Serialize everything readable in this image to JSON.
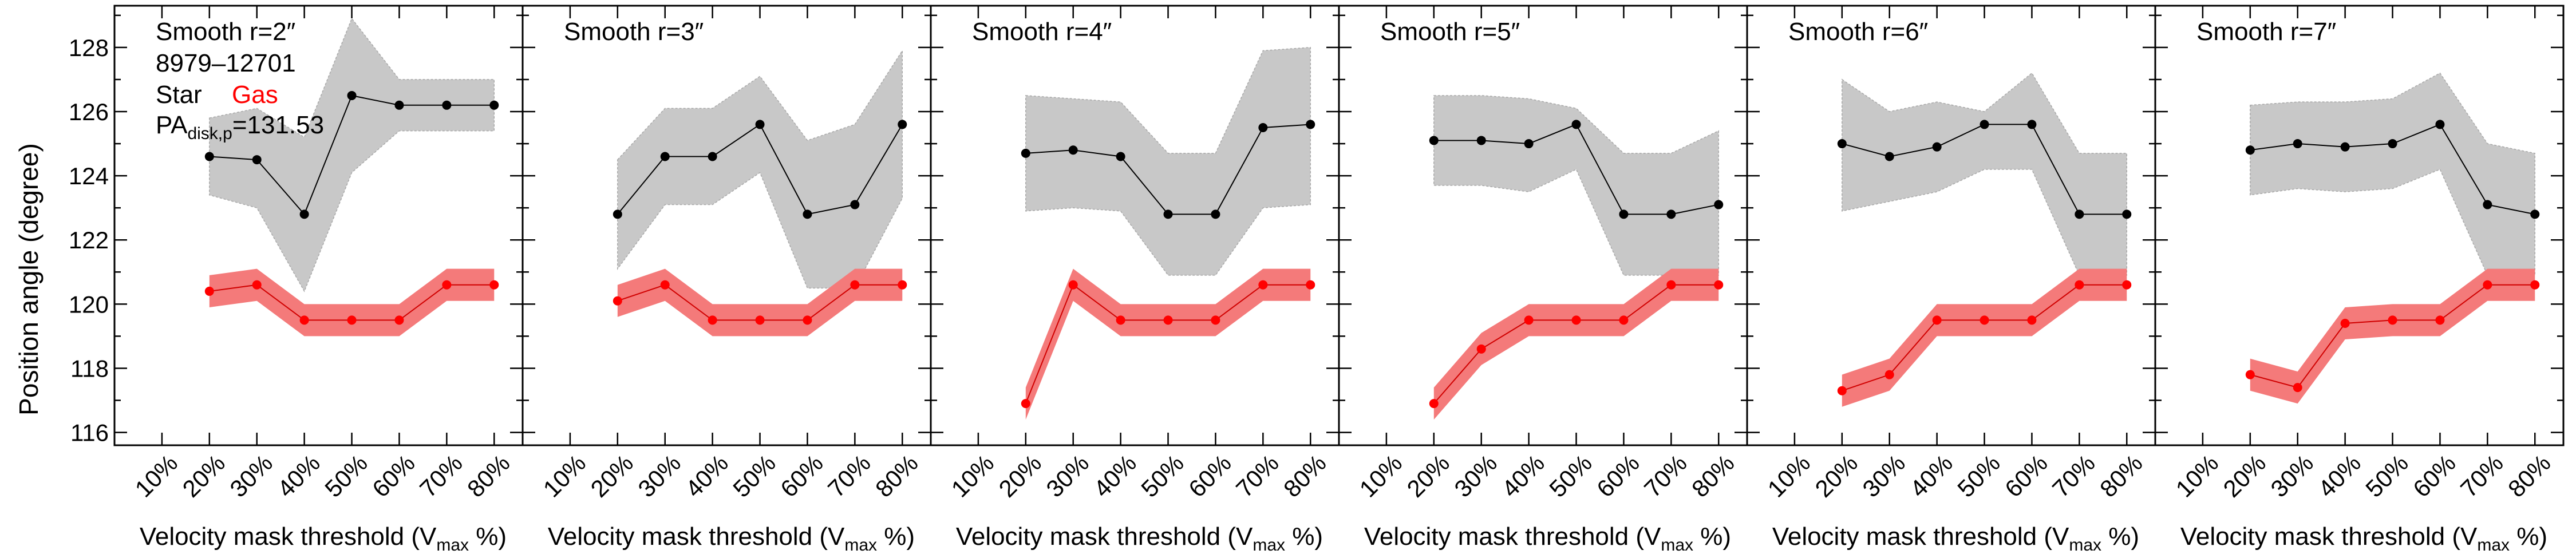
{
  "figure": {
    "ylabel": "Position angle (degree)",
    "xlabel_main": "Velocity mask threshold (V",
    "xlabel_sub": "max",
    "xlabel_tail": " %)",
    "ylim": [
      115.6,
      129.3
    ],
    "y_ticks": [
      "116",
      "118",
      "120",
      "122",
      "124",
      "126",
      "128"
    ],
    "x_ticks": [
      "10%",
      "20%",
      "30%",
      "40%",
      "50%",
      "60%",
      "70%",
      "80%"
    ],
    "x_tick_values": [
      10,
      20,
      30,
      40,
      50,
      60,
      70,
      80
    ],
    "xlim": [
      0,
      86
    ],
    "annotation": {
      "plate_ifu": "8979–12701",
      "star_label": "Star",
      "gas_label": "Gas",
      "pa_main": "PA",
      "pa_sub": "disk,p",
      "pa_value": "=131.53"
    },
    "colors": {
      "star": "#000000",
      "star_band": "#c8c8c8",
      "gas": "#ff0000",
      "gas_band": "#f47a7a"
    }
  },
  "chart_data": [
    {
      "type": "line",
      "title": "Smooth r=2″",
      "x": [
        20,
        30,
        40,
        50,
        60,
        70,
        80
      ],
      "series": [
        {
          "name": "Star",
          "values": [
            124.6,
            124.5,
            122.8,
            126.5,
            126.2,
            126.2,
            126.2
          ],
          "band_low": [
            123.4,
            123.0,
            120.4,
            124.1,
            125.4,
            125.4,
            125.4
          ],
          "band_high": [
            125.8,
            126.1,
            125.2,
            128.9,
            127.0,
            127.0,
            127.0
          ]
        },
        {
          "name": "Gas",
          "values": [
            120.4,
            120.6,
            119.5,
            119.5,
            119.5,
            120.6,
            120.6
          ],
          "band_low": [
            119.9,
            120.1,
            119.0,
            119.0,
            119.0,
            120.1,
            120.1
          ],
          "band_high": [
            120.9,
            121.1,
            120.0,
            120.0,
            120.0,
            121.1,
            121.1
          ]
        }
      ]
    },
    {
      "type": "line",
      "title": "Smooth r=3″",
      "x": [
        20,
        30,
        40,
        50,
        60,
        70,
        80
      ],
      "series": [
        {
          "name": "Star",
          "values": [
            122.8,
            124.6,
            124.6,
            125.6,
            122.8,
            123.1,
            125.6
          ],
          "band_low": [
            121.1,
            123.1,
            123.1,
            124.1,
            120.5,
            120.5,
            123.3
          ],
          "band_high": [
            124.5,
            126.1,
            126.1,
            127.1,
            125.1,
            125.6,
            127.9
          ]
        },
        {
          "name": "Gas",
          "values": [
            120.1,
            120.6,
            119.5,
            119.5,
            119.5,
            120.6,
            120.6
          ],
          "band_low": [
            119.6,
            120.1,
            119.0,
            119.0,
            119.0,
            120.1,
            120.1
          ],
          "band_high": [
            120.6,
            121.1,
            120.0,
            120.0,
            120.0,
            121.1,
            121.1
          ]
        }
      ]
    },
    {
      "type": "line",
      "title": "Smooth r=4″",
      "x": [
        20,
        30,
        40,
        50,
        60,
        70,
        80
      ],
      "series": [
        {
          "name": "Star",
          "values": [
            124.7,
            124.8,
            124.6,
            122.8,
            122.8,
            125.5,
            125.6
          ],
          "band_low": [
            122.9,
            123.0,
            122.9,
            120.9,
            120.9,
            123.0,
            123.1
          ],
          "band_high": [
            126.5,
            126.4,
            126.3,
            124.7,
            124.7,
            127.9,
            128.0
          ]
        },
        {
          "name": "Gas",
          "values": [
            116.9,
            120.6,
            119.5,
            119.5,
            119.5,
            120.6,
            120.6
          ],
          "band_low": [
            116.4,
            120.1,
            119.0,
            119.0,
            119.0,
            120.1,
            120.1
          ],
          "band_high": [
            117.4,
            121.1,
            120.0,
            120.0,
            120.0,
            121.1,
            121.1
          ]
        }
      ]
    },
    {
      "type": "line",
      "title": "Smooth r=5″",
      "x": [
        20,
        30,
        40,
        50,
        60,
        70,
        80
      ],
      "series": [
        {
          "name": "Star",
          "values": [
            125.1,
            125.1,
            125.0,
            125.6,
            122.8,
            122.8,
            123.1
          ],
          "band_low": [
            123.7,
            123.7,
            123.5,
            124.2,
            120.9,
            120.9,
            120.9
          ],
          "band_high": [
            126.5,
            126.5,
            126.4,
            126.1,
            124.7,
            124.7,
            125.4
          ]
        },
        {
          "name": "Gas",
          "values": [
            116.9,
            118.6,
            119.5,
            119.5,
            119.5,
            120.6,
            120.6
          ],
          "band_low": [
            116.4,
            118.1,
            119.0,
            119.0,
            119.0,
            120.1,
            120.1
          ],
          "band_high": [
            117.4,
            119.1,
            120.0,
            120.0,
            120.0,
            121.1,
            121.1
          ]
        }
      ]
    },
    {
      "type": "line",
      "title": "Smooth r=6″",
      "x": [
        20,
        30,
        40,
        50,
        60,
        70,
        80
      ],
      "series": [
        {
          "name": "Star",
          "values": [
            125.0,
            124.6,
            124.9,
            125.6,
            125.6,
            122.8,
            122.8
          ],
          "band_low": [
            122.9,
            123.2,
            123.5,
            124.2,
            124.2,
            120.9,
            120.9
          ],
          "band_high": [
            127.0,
            126.0,
            126.3,
            126.0,
            127.2,
            124.7,
            124.7
          ]
        },
        {
          "name": "Gas",
          "values": [
            117.3,
            117.8,
            119.5,
            119.5,
            119.5,
            120.6,
            120.6
          ],
          "band_low": [
            116.8,
            117.3,
            119.0,
            119.0,
            119.0,
            120.1,
            120.1
          ],
          "band_high": [
            117.8,
            118.3,
            120.0,
            120.0,
            120.0,
            121.1,
            121.1
          ]
        }
      ]
    },
    {
      "type": "line",
      "title": "Smooth r=7″",
      "x": [
        20,
        30,
        40,
        50,
        60,
        70,
        80
      ],
      "series": [
        {
          "name": "Star",
          "values": [
            124.8,
            125.0,
            124.9,
            125.0,
            125.6,
            123.1,
            122.8
          ],
          "band_low": [
            123.4,
            123.6,
            123.5,
            123.6,
            124.2,
            120.9,
            120.9
          ],
          "band_high": [
            126.2,
            126.3,
            126.3,
            126.4,
            127.2,
            125.0,
            124.7
          ]
        },
        {
          "name": "Gas",
          "values": [
            117.8,
            117.4,
            119.4,
            119.5,
            119.5,
            120.6,
            120.6
          ],
          "band_low": [
            117.3,
            116.9,
            118.9,
            119.0,
            119.0,
            120.1,
            120.1
          ],
          "band_high": [
            118.3,
            117.9,
            119.9,
            120.0,
            120.0,
            121.1,
            121.1
          ]
        }
      ]
    }
  ]
}
